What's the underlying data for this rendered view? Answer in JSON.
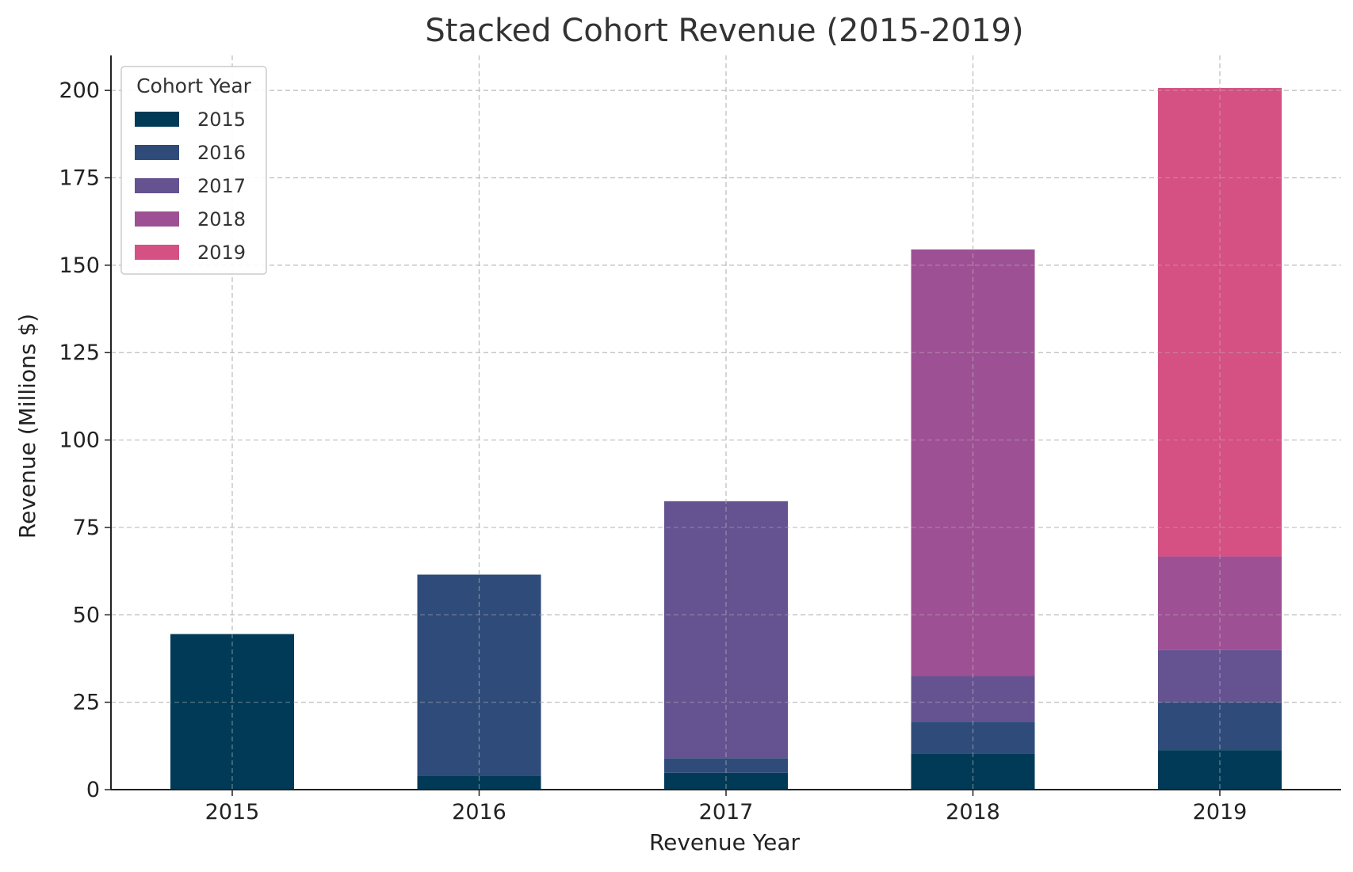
{
  "chart_data": {
    "type": "bar",
    "stacked": true,
    "title": "Stacked Cohort Revenue (2015-2019)",
    "xlabel": "Revenue Year",
    "ylabel": "Revenue (Millions $)",
    "categories": [
      "2015",
      "2016",
      "2017",
      "2018",
      "2019"
    ],
    "ylim": [
      0,
      210
    ],
    "yticks": [
      0,
      25,
      50,
      75,
      100,
      125,
      150,
      175,
      200
    ],
    "grid": true,
    "legend": {
      "title": "Cohort Year",
      "placement": "top-left"
    },
    "series": [
      {
        "name": "2015",
        "color": "#003a57",
        "values": [
          44.5,
          4,
          4.8,
          10.2,
          11.3
        ]
      },
      {
        "name": "2016",
        "color": "#2e4b7a",
        "values": [
          0,
          57.5,
          4.2,
          9.2,
          13.7
        ]
      },
      {
        "name": "2017",
        "color": "#655290",
        "values": [
          0,
          0,
          73.5,
          13.1,
          14.9
        ]
      },
      {
        "name": "2018",
        "color": "#9e5094",
        "values": [
          0,
          0,
          0,
          122,
          26.8
        ]
      },
      {
        "name": "2019",
        "color": "#d55083",
        "values": [
          0,
          0,
          0,
          0,
          134
        ]
      }
    ]
  }
}
